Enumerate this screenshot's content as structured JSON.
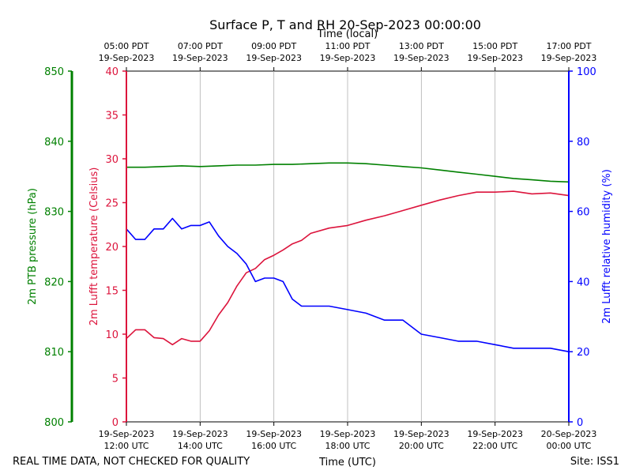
{
  "chart_data": {
    "type": "line",
    "title": "Surface P, T and RH 20-Sep-2023 00:00:00",
    "x_axis_bottom": {
      "label": "Time (UTC)",
      "range_hours": [
        0,
        12
      ],
      "ticks": [
        {
          "hour": 0,
          "date": "19-Sep-2023",
          "time": "12:00 UTC"
        },
        {
          "hour": 2,
          "date": "19-Sep-2023",
          "time": "14:00 UTC"
        },
        {
          "hour": 4,
          "date": "19-Sep-2023",
          "time": "16:00 UTC"
        },
        {
          "hour": 6,
          "date": "19-Sep-2023",
          "time": "18:00 UTC"
        },
        {
          "hour": 8,
          "date": "19-Sep-2023",
          "time": "20:00 UTC"
        },
        {
          "hour": 10,
          "date": "19-Sep-2023",
          "time": "22:00 UTC"
        },
        {
          "hour": 12,
          "date": "20-Sep-2023",
          "time": "00:00 UTC"
        }
      ]
    },
    "x_axis_top": {
      "label": "Time (local)",
      "ticks": [
        {
          "hour": 0,
          "time": "05:00 PDT",
          "date": "19-Sep-2023"
        },
        {
          "hour": 2,
          "time": "07:00 PDT",
          "date": "19-Sep-2023"
        },
        {
          "hour": 4,
          "time": "09:00 PDT",
          "date": "19-Sep-2023"
        },
        {
          "hour": 6,
          "time": "11:00 PDT",
          "date": "19-Sep-2023"
        },
        {
          "hour": 8,
          "time": "13:00 PDT",
          "date": "19-Sep-2023"
        },
        {
          "hour": 10,
          "time": "15:00 PDT",
          "date": "19-Sep-2023"
        },
        {
          "hour": 12,
          "time": "17:00 PDT",
          "date": "19-Sep-2023"
        }
      ]
    },
    "axes": {
      "pressure": {
        "label": "2m PTB pressure (hPa)",
        "color": "#008000",
        "ylim": [
          800,
          850
        ],
        "ticks": [
          "800",
          "810",
          "820",
          "830",
          "840",
          "850"
        ]
      },
      "temperature": {
        "label": "2m Lufft temperature (Celsius)",
        "color": "#dc143c",
        "ylim": [
          0,
          40
        ],
        "ticks": [
          "0",
          "5",
          "10",
          "15",
          "20",
          "25",
          "30",
          "35",
          "40"
        ]
      },
      "humidity": {
        "label": "2m Lufft relative humidity (%)",
        "color": "#0000ff",
        "ylim": [
          0,
          100
        ],
        "ticks": [
          "0",
          "20",
          "40",
          "60",
          "80",
          "100"
        ]
      }
    },
    "grid": "vertical",
    "series": [
      {
        "axis": "pressure",
        "color": "#008000",
        "x": [
          0,
          0.5,
          1,
          1.5,
          2,
          2.5,
          3,
          3.5,
          4,
          4.5,
          5,
          5.5,
          6,
          6.5,
          7,
          7.5,
          8,
          8.5,
          9,
          9.5,
          10,
          10.5,
          11,
          11.5,
          12
        ],
        "y": [
          836.3,
          836.3,
          836.4,
          836.5,
          836.4,
          836.5,
          836.6,
          836.6,
          836.7,
          836.7,
          836.8,
          836.9,
          836.9,
          836.8,
          836.6,
          836.4,
          836.2,
          835.9,
          835.6,
          835.3,
          835.0,
          834.7,
          834.5,
          834.3,
          834.2
        ]
      },
      {
        "axis": "temperature",
        "color": "#dc143c",
        "x": [
          0,
          0.25,
          0.5,
          0.75,
          1,
          1.25,
          1.5,
          1.75,
          2,
          2.25,
          2.5,
          2.75,
          3,
          3.25,
          3.5,
          3.75,
          4,
          4.25,
          4.5,
          4.75,
          5,
          5.5,
          6,
          6.5,
          7,
          7.5,
          8,
          8.5,
          9,
          9.5,
          10,
          10.5,
          11,
          11.5,
          12
        ],
        "y": [
          9.5,
          10.5,
          10.5,
          9.6,
          9.5,
          8.8,
          9.5,
          9.2,
          9.2,
          10.4,
          12.2,
          13.6,
          15.5,
          17.0,
          17.5,
          18.5,
          19.0,
          19.6,
          20.3,
          20.7,
          21.5,
          22.1,
          22.4,
          23.0,
          23.5,
          24.1,
          24.7,
          25.3,
          25.8,
          26.2,
          26.2,
          26.3,
          26.0,
          26.1,
          25.8
        ]
      },
      {
        "axis": "humidity",
        "color": "#0000ff",
        "x": [
          0,
          0.25,
          0.5,
          0.75,
          1,
          1.25,
          1.5,
          1.75,
          2,
          2.25,
          2.5,
          2.75,
          3,
          3.25,
          3.5,
          3.75,
          4,
          4.25,
          4.5,
          4.75,
          5,
          5.5,
          6,
          6.5,
          7,
          7.5,
          8,
          8.5,
          9,
          9.5,
          10,
          10.5,
          11,
          11.5,
          12
        ],
        "y": [
          55,
          52,
          52,
          55,
          55,
          58,
          55,
          56,
          56,
          57,
          53,
          50,
          48,
          45,
          40,
          41,
          41,
          40,
          35,
          33,
          33,
          33,
          32,
          31,
          29,
          29,
          25,
          24,
          23,
          23,
          22,
          21,
          21,
          21,
          20
        ]
      }
    ],
    "annotations": {
      "footer_left": "REAL TIME DATA, NOT CHECKED FOR QUALITY",
      "footer_right": "Site: ISS1"
    }
  }
}
